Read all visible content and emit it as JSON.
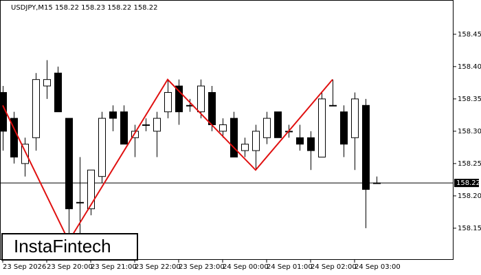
{
  "chart_data": {
    "type": "candlestick",
    "title": "USDJPY,M15  158.22 158.23 158.22 158.22",
    "brand": "InstaFintech",
    "categories": [
      "23 Sep 2026",
      null,
      null,
      null,
      "23 Sep 20:00",
      null,
      null,
      null,
      "23 Sep 21:00",
      null,
      null,
      null,
      "23 Sep 22:00",
      null,
      null,
      null,
      "23 Sep 23:00",
      null,
      null,
      null,
      "24 Sep 00:00",
      null,
      null,
      null,
      "24 Sep 01:00",
      null,
      null,
      null,
      "24 Sep 02:00",
      null,
      null,
      null,
      "24 Sep 03:00",
      null,
      null
    ],
    "open": [
      158.36,
      158.32,
      158.25,
      158.29,
      158.37,
      158.39,
      158.32,
      158.19,
      158.18,
      158.23,
      158.33,
      158.33,
      158.29,
      158.31,
      158.3,
      158.33,
      158.37,
      158.34,
      158.33,
      158.36,
      158.3,
      158.32,
      158.27,
      158.27,
      158.29,
      158.33,
      158.3,
      158.29,
      158.29,
      158.26,
      158.34,
      158.33,
      158.29,
      158.34,
      158.22
    ],
    "high": [
      158.37,
      158.33,
      158.29,
      158.39,
      158.41,
      158.4,
      158.32,
      158.26,
      158.24,
      158.33,
      158.34,
      158.34,
      158.31,
      158.32,
      158.33,
      158.38,
      158.38,
      158.35,
      158.38,
      158.37,
      158.32,
      158.33,
      158.29,
      158.31,
      158.33,
      158.33,
      158.31,
      158.31,
      158.3,
      158.36,
      158.38,
      158.34,
      158.36,
      158.35,
      158.23
    ],
    "low": [
      158.27,
      158.25,
      158.23,
      158.27,
      158.35,
      158.33,
      158.14,
      158.14,
      158.17,
      158.22,
      158.3,
      158.28,
      158.26,
      158.3,
      158.26,
      158.32,
      158.31,
      158.33,
      158.32,
      158.3,
      158.29,
      158.26,
      158.26,
      158.24,
      158.28,
      158.29,
      158.29,
      158.27,
      158.24,
      158.26,
      158.34,
      158.26,
      158.24,
      158.15,
      158.22
    ],
    "close": [
      158.3,
      158.26,
      158.28,
      158.38,
      158.38,
      158.33,
      158.18,
      158.19,
      158.24,
      158.32,
      158.32,
      158.28,
      158.3,
      158.31,
      158.32,
      158.36,
      158.33,
      158.34,
      158.37,
      158.31,
      158.31,
      158.26,
      158.28,
      158.3,
      158.32,
      158.29,
      158.3,
      158.28,
      158.27,
      158.35,
      158.34,
      158.28,
      158.35,
      158.21,
      158.22
    ],
    "up_color": "#ffffff",
    "down_color": "#000000",
    "current_price": 158.22,
    "pattern_color": "#e01010",
    "pattern_points": [
      {
        "index": 0,
        "price": 158.34
      },
      {
        "index": 6,
        "price": 158.13
      },
      {
        "index": 15,
        "price": 158.38
      },
      {
        "index": 23,
        "price": 158.24
      },
      {
        "index": 30,
        "price": 158.38
      }
    ],
    "ylim": [
      158.101,
      158.503
    ],
    "yticks": [
      158.15,
      {
        "value": 158.2,
        "label": "158.20"
      },
      158.25,
      {
        "value": 158.3,
        "label": "158.30"
      },
      158.35,
      {
        "value": 158.4,
        "label": "158.40"
      },
      158.45
    ]
  }
}
